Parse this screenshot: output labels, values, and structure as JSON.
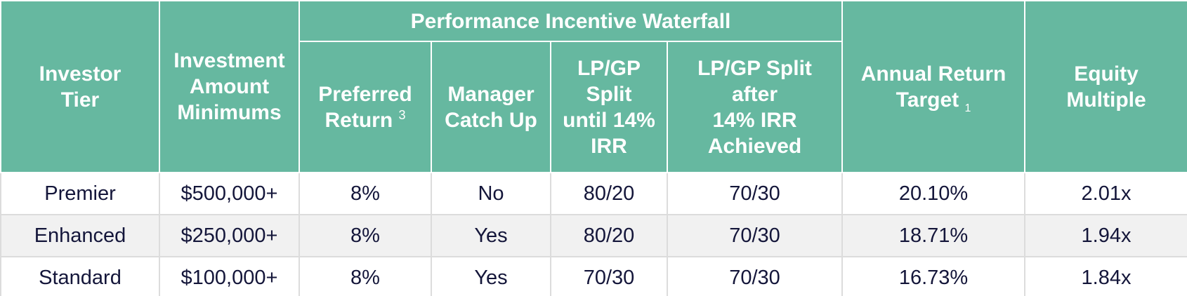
{
  "header": {
    "investor_tier": [
      "Investor",
      "Tier"
    ],
    "investment_minimums": [
      "Investment",
      "Amount",
      "Minimums"
    ],
    "waterfall_group": "Performance Incentive Waterfall",
    "preferred_return": [
      "Preferred",
      "Return"
    ],
    "preferred_return_note": "3",
    "manager_catch_up": [
      "Manager",
      "Catch Up"
    ],
    "split_until": [
      "LP/GP",
      "Split",
      "until 14%",
      "IRR"
    ],
    "split_after": [
      "LP/GP Split",
      "after",
      "14% IRR",
      "Achieved"
    ],
    "annual_return": [
      "Annual Return",
      "Target"
    ],
    "annual_return_note": "1",
    "equity_multiple": [
      "Equity",
      "Multiple"
    ]
  },
  "rows": [
    {
      "tier": "Premier",
      "minimum": "$500,000+",
      "preferred": "8%",
      "catch_up": "No",
      "split_until": "80/20",
      "split_after": "70/30",
      "annual_return": "20.10%",
      "multiple": "2.01x"
    },
    {
      "tier": "Enhanced",
      "minimum": "$250,000+",
      "preferred": "8%",
      "catch_up": "Yes",
      "split_until": "80/20",
      "split_after": "70/30",
      "annual_return": "18.71%",
      "multiple": "1.94x"
    },
    {
      "tier": "Standard",
      "minimum": "$100,000+",
      "preferred": "8%",
      "catch_up": "Yes",
      "split_until": "70/30",
      "split_after": "70/30",
      "annual_return": "16.73%",
      "multiple": "1.84x"
    }
  ],
  "colors": {
    "header_bg": "#66b8a0",
    "header_text": "#ffffff",
    "body_text": "#14163a",
    "alt_row_bg": "#f1f1f1"
  }
}
